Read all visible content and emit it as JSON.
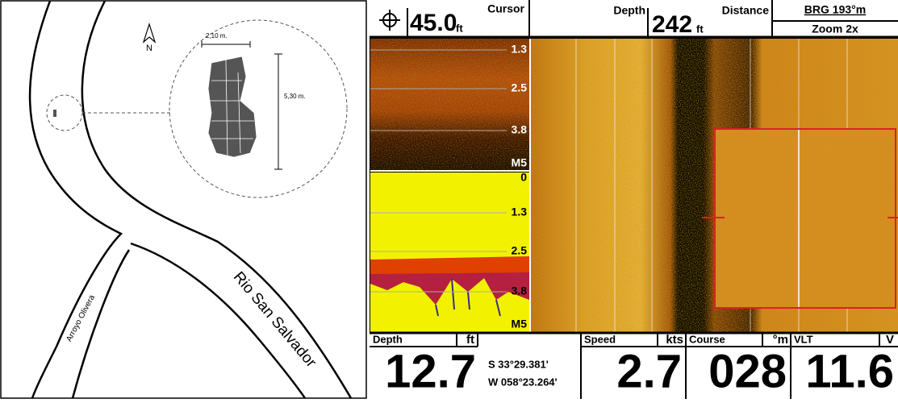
{
  "map": {
    "north": "N",
    "width_label": "2,10 m.",
    "height_label": "5,30 m.",
    "river_label": "Rio San Salvador",
    "stream_label": "Arroyo Olivera"
  },
  "sonar": {
    "top_bar": {
      "cursor_value": "45.0",
      "cursor_unit": "ft",
      "cursor_label": "Cursor",
      "depth_label": "Depth",
      "depth_value": "242",
      "depth_unit": "ft",
      "distance_label": "Distance",
      "bearing": "BRG  193°m",
      "zoom": "Zoom 2x"
    },
    "upper_scale": [
      "1.3",
      "2.5",
      "3.8",
      "M5"
    ],
    "lower_scale": [
      "0",
      "1.3",
      "2.5",
      "3.8",
      "M5"
    ],
    "bottom_bar": {
      "depth_label": "Depth",
      "depth_unit": "ft",
      "depth_value": "12.7",
      "latitude": "S 33°29.381'",
      "longitude": "W 058°23.264'",
      "speed_label": "Speed",
      "speed_unit": "kts",
      "speed_value": "2.7",
      "course_label": "Course",
      "course_unit": "°m",
      "course_value": "028",
      "vlt_label": "VLT",
      "vlt_unit": "V",
      "vlt_value": "11.6"
    }
  }
}
